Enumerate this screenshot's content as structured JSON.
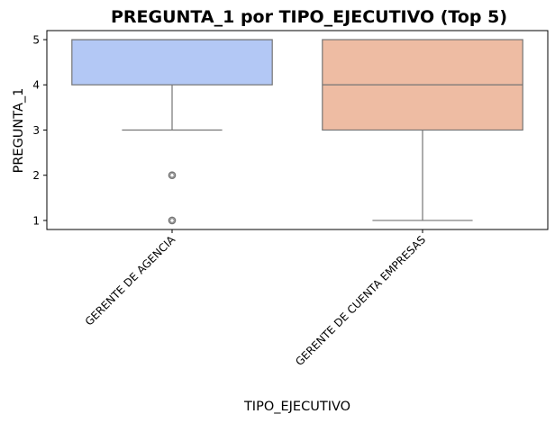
{
  "chart_data": {
    "type": "boxplot",
    "title": "PREGUNTA_1 por TIPO_EJECUTIVO (Top 5)",
    "xlabel": "TIPO_EJECUTIVO",
    "ylabel": "PREGUNTA_1",
    "categories": [
      "GERENTE DE AGENCIA",
      "GERENTE DE CUENTA EMPRESAS"
    ],
    "ylim": [
      0.8,
      5.2
    ],
    "yticks": [
      "1",
      "2",
      "3",
      "4",
      "5"
    ],
    "boxes": [
      {
        "category": "GERENTE DE AGENCIA",
        "whisker_low": 3,
        "q1": 4,
        "median": 5,
        "q3": 5,
        "whisker_high": 5,
        "outliers": [
          2,
          1
        ],
        "color": "#b3c8f5"
      },
      {
        "category": "GERENTE DE CUENTA EMPRESAS",
        "whisker_low": 1,
        "q1": 3,
        "median": 4,
        "q3": 5,
        "whisker_high": 5,
        "outliers": [],
        "color": "#eebca3"
      }
    ],
    "grid": false,
    "legend": "none"
  }
}
